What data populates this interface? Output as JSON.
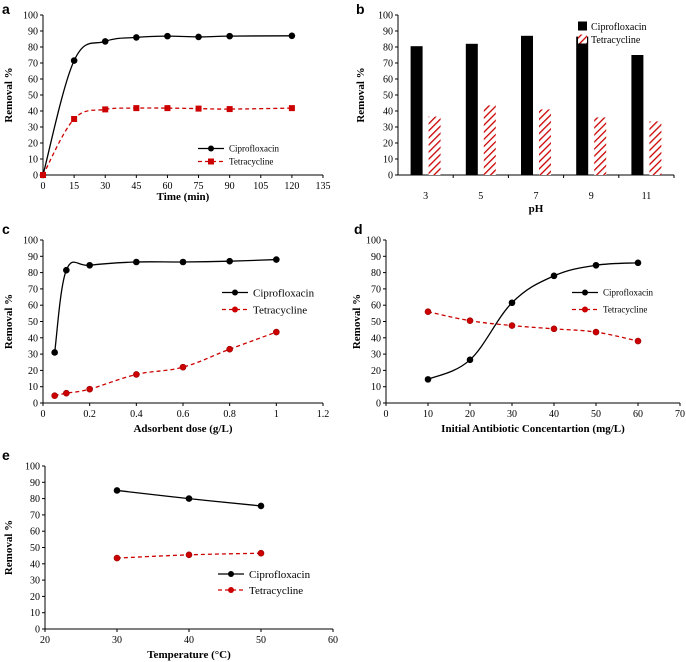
{
  "chart_data": [
    {
      "id": "a",
      "panel_label": "a",
      "type": "line",
      "xlabel": "Time (min)",
      "ylabel": "Removal %",
      "xlim": [
        0,
        135
      ],
      "ylim": [
        0,
        100
      ],
      "xticks": [
        "0",
        "15",
        "30",
        "45",
        "60",
        "75",
        "90",
        "105",
        "120",
        "135"
      ],
      "yticks": [
        "0",
        "10",
        "20",
        "30",
        "40",
        "50",
        "60",
        "70",
        "80",
        "90",
        "100"
      ],
      "legend": "bottom-right",
      "series": [
        {
          "name": "Ciprofloxacin",
          "color": "#000000",
          "dashed": false,
          "marker": "circle",
          "x": [
            0,
            15,
            30,
            45,
            60,
            75,
            90,
            120
          ],
          "y": [
            0,
            71.5,
            83.5,
            86,
            86.8,
            86.3,
            86.8,
            87
          ]
        },
        {
          "name": "Tetracycline",
          "color": "#cc0000",
          "dashed": true,
          "marker": "square",
          "x": [
            0,
            15,
            30,
            45,
            60,
            75,
            90,
            120
          ],
          "y": [
            0,
            35,
            41,
            41.8,
            41.8,
            41.5,
            41.2,
            41.8
          ]
        }
      ]
    },
    {
      "id": "b",
      "panel_label": "b",
      "type": "bar",
      "xlabel": "pH",
      "ylabel": "Removal %",
      "categories": [
        "3",
        "5",
        "7",
        "9",
        "11"
      ],
      "ylim": [
        0,
        100
      ],
      "yticks": [
        "0",
        "10",
        "20",
        "30",
        "40",
        "50",
        "60",
        "70",
        "80",
        "90",
        "100"
      ],
      "legend": "top-right",
      "series": [
        {
          "name": "Ciprofloxacin",
          "color": "#000000",
          "pattern": "solid",
          "values": [
            80.5,
            82,
            87,
            86.5,
            75
          ]
        },
        {
          "name": "Tetracycline",
          "color": "#cc0000",
          "pattern": "hatch",
          "values": [
            36.5,
            43.5,
            41,
            36,
            33.5
          ]
        }
      ]
    },
    {
      "id": "c",
      "panel_label": "c",
      "type": "line",
      "xlabel": "Adsorbent dose (g/L)",
      "ylabel": "Removal %",
      "xlim": [
        0,
        1.2
      ],
      "ylim": [
        0,
        100
      ],
      "xticks": [
        "0",
        "0.2",
        "0.4",
        "0.6",
        "0.8",
        "1",
        "1.2"
      ],
      "yticks": [
        "0",
        "10",
        "20",
        "30",
        "40",
        "50",
        "60",
        "70",
        "80",
        "90",
        "100"
      ],
      "legend": "top-right",
      "series": [
        {
          "name": "Ciprofloxacin",
          "color": "#000000",
          "dashed": false,
          "marker": "circle",
          "x": [
            0.05,
            0.1,
            0.2,
            0.4,
            0.6,
            0.8,
            1.0
          ],
          "y": [
            31,
            81.5,
            84.5,
            86.5,
            86.5,
            87,
            88
          ]
        },
        {
          "name": "Tetracycline",
          "color": "#cc0000",
          "dashed": true,
          "marker": "circle",
          "x": [
            0.05,
            0.1,
            0.2,
            0.4,
            0.6,
            0.8,
            1.0
          ],
          "y": [
            4.5,
            6,
            8.5,
            17.5,
            22,
            33,
            43.5
          ]
        }
      ]
    },
    {
      "id": "d",
      "panel_label": "d",
      "type": "line",
      "xlabel": "Initial Antibiotic Concentartion  (mg/L)",
      "ylabel": "Removal %",
      "xlim": [
        0,
        70
      ],
      "ylim": [
        0,
        100
      ],
      "xticks": [
        "0",
        "10",
        "20",
        "30",
        "40",
        "50",
        "60",
        "70"
      ],
      "yticks": [
        "0",
        "10",
        "20",
        "30",
        "40",
        "50",
        "60",
        "70",
        "80",
        "90",
        "100"
      ],
      "legend": "top-right",
      "series": [
        {
          "name": "Ciprofloxacin",
          "color": "#000000",
          "dashed": false,
          "marker": "circle",
          "x": [
            10,
            20,
            30,
            40,
            50,
            60
          ],
          "y": [
            14.5,
            26.5,
            61.5,
            78,
            84.5,
            86
          ]
        },
        {
          "name": "Tetracycline",
          "color": "#cc0000",
          "dashed": true,
          "marker": "circle",
          "x": [
            10,
            20,
            30,
            40,
            50,
            60
          ],
          "y": [
            56,
            50.5,
            47.5,
            45.5,
            43.5,
            38
          ]
        }
      ]
    },
    {
      "id": "e",
      "panel_label": "e",
      "type": "line",
      "xlabel": "Temperature (°C)",
      "ylabel": "Removal %",
      "xlim": [
        20,
        60
      ],
      "ylim": [
        0,
        100
      ],
      "xticks": [
        "20",
        "30",
        "40",
        "50",
        "60"
      ],
      "yticks": [
        "0",
        "10",
        "20",
        "30",
        "40",
        "50",
        "60",
        "70",
        "80",
        "90",
        "100"
      ],
      "legend": "bottom-right",
      "series": [
        {
          "name": "Ciprofloxacin",
          "color": "#000000",
          "dashed": false,
          "marker": "circle",
          "x": [
            30,
            40,
            50
          ],
          "y": [
            85,
            80,
            75.5
          ]
        },
        {
          "name": "Tetracycline",
          "color": "#cc0000",
          "dashed": true,
          "marker": "circle",
          "x": [
            30,
            40,
            50
          ],
          "y": [
            43.5,
            45.5,
            46.5
          ]
        }
      ]
    }
  ]
}
